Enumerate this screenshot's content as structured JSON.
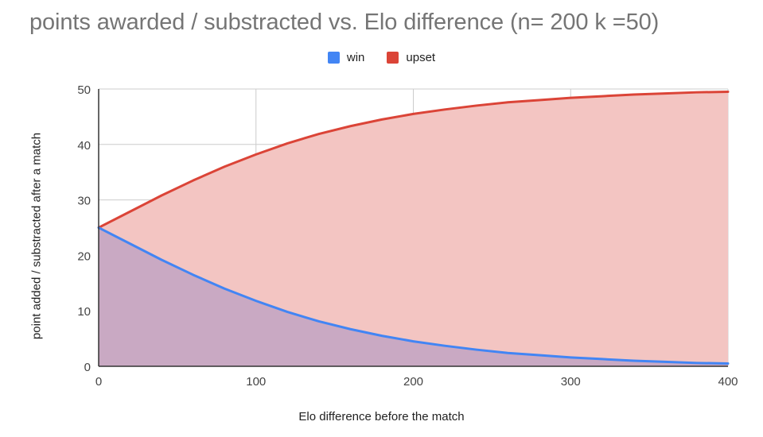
{
  "chart_data": {
    "type": "area",
    "title": "points awarded / substracted  vs. Elo difference (n= 200 k =50)",
    "xlabel": "Elo difference before the match",
    "ylabel": "point added / substracted after a match",
    "xlim": [
      0,
      400
    ],
    "ylim": [
      0,
      50
    ],
    "xticks": [
      "0",
      "100",
      "200",
      "300",
      "400"
    ],
    "yticks": [
      "0",
      "10",
      "20",
      "30",
      "40",
      "50"
    ],
    "grid": true,
    "legend_position": "top",
    "x": [
      0,
      20,
      40,
      60,
      80,
      100,
      120,
      140,
      160,
      180,
      200,
      220,
      240,
      260,
      280,
      300,
      320,
      340,
      360,
      380,
      400
    ],
    "series": [
      {
        "name": "win",
        "color": "#4285f4",
        "fill": "#c9a9c3",
        "values": [
          25.0,
          22.1,
          19.2,
          16.5,
          14.0,
          11.8,
          9.8,
          8.1,
          6.7,
          5.5,
          4.5,
          3.7,
          3.0,
          2.4,
          2.0,
          1.6,
          1.3,
          1.0,
          0.8,
          0.6,
          0.5
        ]
      },
      {
        "name": "upset",
        "color": "#db4437",
        "fill": "#f3c5c2",
        "values": [
          25.0,
          27.9,
          30.8,
          33.5,
          36.0,
          38.2,
          40.2,
          41.9,
          43.3,
          44.5,
          45.5,
          46.3,
          47.0,
          47.6,
          48.0,
          48.4,
          48.7,
          49.0,
          49.2,
          49.4,
          49.5
        ]
      }
    ]
  }
}
